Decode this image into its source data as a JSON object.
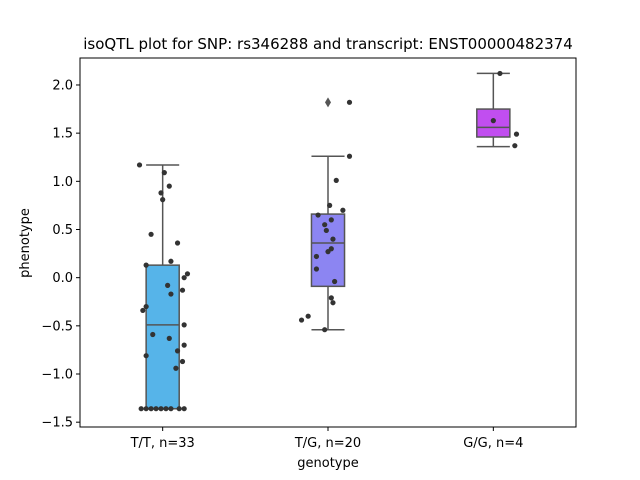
{
  "chart_data": {
    "type": "box",
    "title": "isoQTL plot for SNP: rs346288 and transcript: ENST00000482374",
    "xlabel": "genotype",
    "ylabel": "phenotype",
    "ylim": [
      -1.55,
      2.28
    ],
    "yticks": [
      -1.5,
      -1.0,
      -0.5,
      0.0,
      0.5,
      1.0,
      1.5,
      2.0
    ],
    "ytick_labels": [
      "−1.5",
      "−1.0",
      "−0.5",
      "0.0",
      "0.5",
      "1.0",
      "1.5",
      "2.0"
    ],
    "categories": [
      "T/T, n=33",
      "T/G, n=20",
      "G/G, n=4"
    ],
    "colors": [
      "#56b4e9",
      "#8c85f2",
      "#c14ef0"
    ],
    "point_color": "#333333",
    "box_edge_color": "#555555",
    "boxes": [
      {
        "q1": -1.36,
        "median": -0.49,
        "q3": 0.13,
        "whisker_low": -1.36,
        "whisker_high": 1.17,
        "outliers": []
      },
      {
        "q1": -0.09,
        "median": 0.36,
        "q3": 0.66,
        "whisker_low": -0.54,
        "whisker_high": 1.26,
        "outliers": [
          1.82
        ]
      },
      {
        "q1": 1.46,
        "median": 1.56,
        "q3": 1.75,
        "whisker_low": 1.36,
        "whisker_high": 2.12,
        "outliers": []
      }
    ],
    "points": [
      [
        {
          "dx": -0.14,
          "y": 1.17
        },
        {
          "dx": 0.01,
          "y": 1.09
        },
        {
          "dx": 0.04,
          "y": 0.95
        },
        {
          "dx": -0.01,
          "y": 0.88
        },
        {
          "dx": 0.0,
          "y": 0.81
        },
        {
          "dx": -0.07,
          "y": 0.45
        },
        {
          "dx": 0.09,
          "y": 0.36
        },
        {
          "dx": 0.05,
          "y": 0.17
        },
        {
          "dx": -0.1,
          "y": 0.13
        },
        {
          "dx": 0.15,
          "y": 0.04
        },
        {
          "dx": 0.13,
          "y": 0.0
        },
        {
          "dx": 0.03,
          "y": -0.08
        },
        {
          "dx": 0.12,
          "y": -0.13
        },
        {
          "dx": 0.05,
          "y": -0.17
        },
        {
          "dx": -0.1,
          "y": -0.3
        },
        {
          "dx": -0.12,
          "y": -0.34
        },
        {
          "dx": 0.13,
          "y": -0.49
        },
        {
          "dx": -0.06,
          "y": -0.59
        },
        {
          "dx": 0.04,
          "y": -0.63
        },
        {
          "dx": 0.13,
          "y": -0.7
        },
        {
          "dx": 0.09,
          "y": -0.76
        },
        {
          "dx": -0.1,
          "y": -0.81
        },
        {
          "dx": 0.12,
          "y": -0.87
        },
        {
          "dx": 0.08,
          "y": -0.94
        },
        {
          "dx": -0.13,
          "y": -1.36
        },
        {
          "dx": -0.1,
          "y": -1.36
        },
        {
          "dx": -0.07,
          "y": -1.36
        },
        {
          "dx": -0.04,
          "y": -1.36
        },
        {
          "dx": -0.01,
          "y": -1.36
        },
        {
          "dx": 0.02,
          "y": -1.36
        },
        {
          "dx": 0.05,
          "y": -1.36
        },
        {
          "dx": 0.1,
          "y": -1.36
        },
        {
          "dx": 0.13,
          "y": -1.36
        }
      ],
      [
        {
          "dx": 0.13,
          "y": 1.82
        },
        {
          "dx": 0.13,
          "y": 1.26
        },
        {
          "dx": 0.05,
          "y": 1.01
        },
        {
          "dx": 0.01,
          "y": 0.75
        },
        {
          "dx": 0.09,
          "y": 0.7
        },
        {
          "dx": -0.06,
          "y": 0.65
        },
        {
          "dx": 0.02,
          "y": 0.6
        },
        {
          "dx": -0.02,
          "y": 0.55
        },
        {
          "dx": -0.01,
          "y": 0.49
        },
        {
          "dx": 0.03,
          "y": 0.4
        },
        {
          "dx": 0.02,
          "y": 0.3
        },
        {
          "dx": 0.0,
          "y": 0.27
        },
        {
          "dx": -0.07,
          "y": 0.22
        },
        {
          "dx": -0.07,
          "y": 0.09
        },
        {
          "dx": 0.04,
          "y": -0.04
        },
        {
          "dx": 0.02,
          "y": -0.21
        },
        {
          "dx": 0.03,
          "y": -0.26
        },
        {
          "dx": -0.12,
          "y": -0.4
        },
        {
          "dx": -0.16,
          "y": -0.44
        },
        {
          "dx": -0.02,
          "y": -0.54
        }
      ],
      [
        {
          "dx": 0.04,
          "y": 2.12
        },
        {
          "dx": 0.0,
          "y": 1.63
        },
        {
          "dx": 0.14,
          "y": 1.49
        },
        {
          "dx": 0.13,
          "y": 1.37
        }
      ]
    ]
  }
}
